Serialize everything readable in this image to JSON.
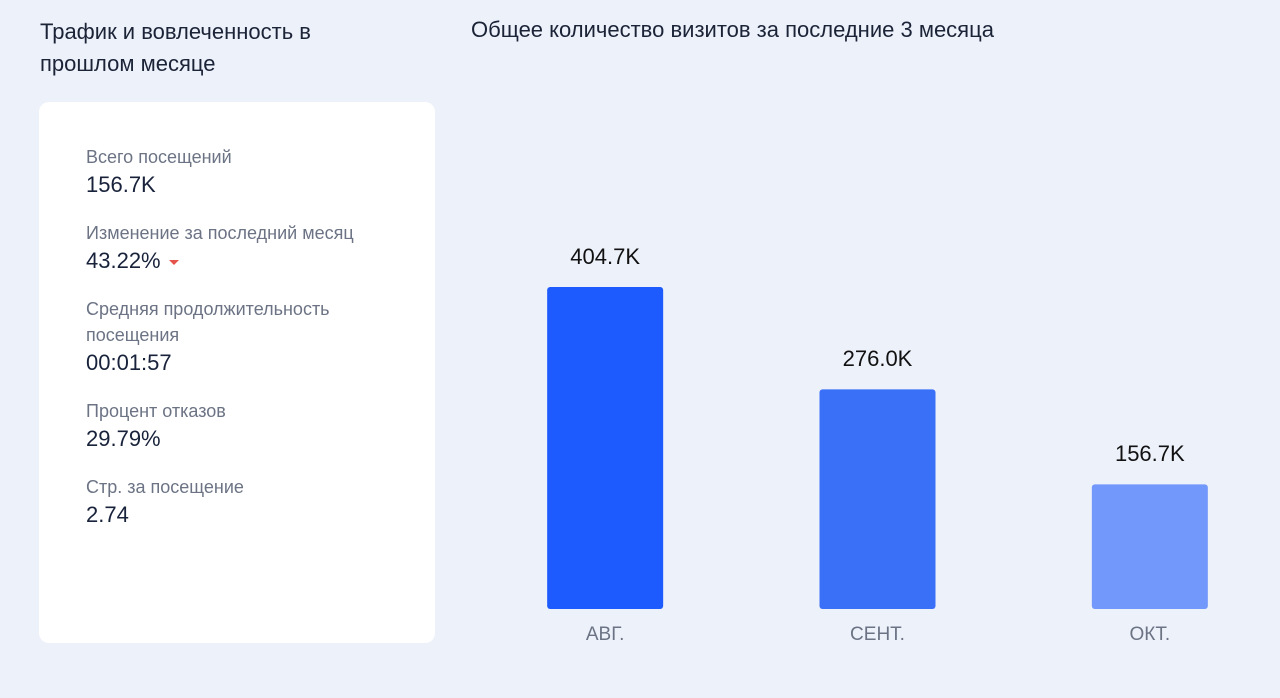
{
  "panel": {
    "title": "Трафик и вовлеченность в прошлом месяце",
    "metrics": [
      {
        "label": "Всего посещений",
        "value": "156.7K"
      },
      {
        "label": "Изменение за последний месяц",
        "value": "43.22%"
      },
      {
        "label": "Средняя продолжительность посещения",
        "value": "00:01:57"
      },
      {
        "label": "Процент отказов",
        "value": "29.79%"
      },
      {
        "label": "Стр. за посещение",
        "value": "2.74"
      }
    ]
  },
  "chart_data": {
    "type": "bar",
    "title": "Общее количество визитов за последние 3 месяца",
    "categories": [
      "АВГ.",
      "СЕНТ.",
      "ОКТ."
    ],
    "values": [
      404.7,
      276.0,
      156.7
    ],
    "value_labels": [
      "404.7K",
      "276.0K",
      "156.7K"
    ],
    "colors": [
      "#1d5bff",
      "#3a6ff8",
      "#7198fa"
    ]
  }
}
